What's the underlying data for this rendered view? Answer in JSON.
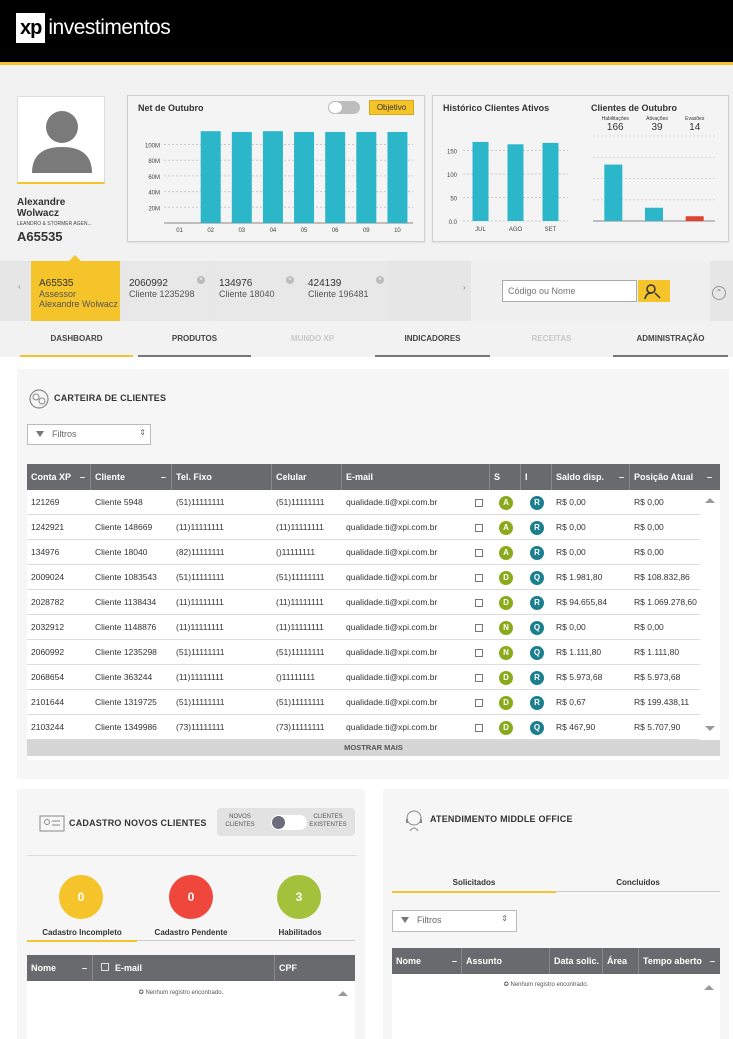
{
  "app": {
    "logo_xp": "xp",
    "logo_name": "investimentos"
  },
  "profile": {
    "name_line1": "Alexandre",
    "name_line2": "Wolwacz",
    "company": "LEANDRO & STORMER AGEN...",
    "code": "A65535"
  },
  "net_chart": {
    "title": "Net de Outubro",
    "objective_label": "Objetivo"
  },
  "history": {
    "title": "Histórico Clientes Ativos"
  },
  "clients_oct": {
    "title": "Clientes de Outubro",
    "stats": [
      {
        "label": "Habilitações",
        "value": "166"
      },
      {
        "label": "Ativações",
        "value": "39"
      },
      {
        "label": "Evasões",
        "value": "14"
      }
    ]
  },
  "chart_data": [
    {
      "type": "bar",
      "title": "Net de Outubro",
      "categories": [
        "01",
        "02",
        "03",
        "04",
        "05",
        "06",
        "09",
        "10"
      ],
      "values": [
        null,
        117,
        116,
        117,
        116,
        116,
        116,
        116
      ],
      "ylim": [
        0,
        130
      ],
      "yticks": [
        "20M",
        "40M",
        "60M",
        "80M",
        "100M"
      ],
      "color": "#2cb6c9"
    },
    {
      "type": "bar",
      "title": "Histórico Clientes Ativos",
      "categories": [
        "JUL",
        "AGO",
        "SET"
      ],
      "values": [
        168,
        163,
        166
      ],
      "ylim": [
        0,
        170
      ],
      "yticks": [
        "0.0",
        "50",
        "100",
        "150"
      ],
      "color": "#2cb6c9"
    },
    {
      "type": "bar",
      "title": "Clientes de Outubro",
      "categories": [
        "Habilitações",
        "Ativações",
        "Evasões"
      ],
      "values": [
        166,
        39,
        14
      ],
      "ylim": [
        0,
        250
      ],
      "colors": [
        "#2cb6c9",
        "#2cb6c9",
        "#e0442f"
      ]
    }
  ],
  "client_tabs": [
    {
      "code": "A65535",
      "line1": "Assessor",
      "line2": "Alexandre Wolwacz"
    },
    {
      "code": "2060992",
      "line1": "Cliente 1235298",
      "line2": ""
    },
    {
      "code": "134976",
      "line1": "Cliente 18040",
      "line2": ""
    },
    {
      "code": "424139",
      "line1": "Cliente 196481",
      "line2": ""
    }
  ],
  "search": {
    "placeholder": "Código ou Nome"
  },
  "nav": [
    "DASHBOARD",
    "PRODUTOS",
    "MUNDO XP",
    "INDICADORES",
    "RECEITAS",
    "ADMINISTRAÇÃO"
  ],
  "carteira": {
    "title": "CARTEIRA DE CLIENTES",
    "filter": "Filtros",
    "more": "MOSTRAR MAIS",
    "headers": [
      "Conta XP",
      "Cliente",
      "Tel. Fixo",
      "Celular",
      "E-mail",
      "S",
      "I",
      "Saldo disp.",
      "Posição Atual"
    ],
    "rows": [
      [
        "121269",
        "Cliente 5948",
        "(51)11111111",
        "(51)11111111",
        "qualidade.ti@xpi.com.br",
        "A",
        "R",
        "R$ 0,00",
        "R$ 0,00"
      ],
      [
        "1242921",
        "Cliente 148669",
        "(11)11111111",
        "(11)11111111",
        "qualidade.ti@xpi.com.br",
        "A",
        "R",
        "R$ 0,00",
        "R$ 0,00"
      ],
      [
        "134976",
        "Cliente 18040",
        "(82)11111111",
        "()11111111",
        "qualidade.ti@xpi.com.br",
        "A",
        "R",
        "R$ 0,00",
        "R$ 0,00"
      ],
      [
        "2009024",
        "Cliente 1083543",
        "(51)11111111",
        "(51)11111111",
        "qualidade.ti@xpi.com.br",
        "D",
        "Q",
        "R$ 1.981,80",
        "R$ 108.832,86"
      ],
      [
        "2028782",
        "Cliente 1138434",
        "(11)11111111",
        "(11)11111111",
        "qualidade.ti@xpi.com.br",
        "D",
        "R",
        "R$ 94.655,84",
        "R$ 1.069.278,60"
      ],
      [
        "2032912",
        "Cliente 1148876",
        "(11)11111111",
        "(11)11111111",
        "qualidade.ti@xpi.com.br",
        "N",
        "Q",
        "R$ 0,00",
        "R$ 0,00"
      ],
      [
        "2060992",
        "Cliente 1235298",
        "(51)11111111",
        "(51)11111111",
        "qualidade.ti@xpi.com.br",
        "N",
        "Q",
        "R$ 1.111,80",
        "R$ 1.111,80"
      ],
      [
        "2068654",
        "Cliente 363244",
        "(11)11111111",
        "()11111111",
        "qualidade.ti@xpi.com.br",
        "D",
        "R",
        "R$ 5.973,68",
        "R$ 5.973,68"
      ],
      [
        "2101644",
        "Cliente 1319725",
        "(51)11111111",
        "(51)11111111",
        "qualidade.ti@xpi.com.br",
        "D",
        "R",
        "R$ 0,67",
        "R$ 199.438,11"
      ],
      [
        "2103244",
        "Cliente 1349986",
        "(73)11111111",
        "(73)11111111",
        "qualidade.ti@xpi.com.br",
        "D",
        "Q",
        "R$ 467,90",
        "R$ 5.707,90"
      ]
    ]
  },
  "cadastro": {
    "title": "CADASTRO NOVOS CLIENTES",
    "toggle_left": "NOVOS CLIENTES",
    "toggle_right": "CLIENTES EXISTENTES",
    "circles": [
      {
        "value": "0",
        "label": "Cadastro Incompleto",
        "color": "#f5c32a"
      },
      {
        "value": "0",
        "label": "Cadastro Pendente",
        "color": "#f0473c"
      },
      {
        "value": "3",
        "label": "Habilitados",
        "color": "#a3c13a"
      }
    ],
    "headers": [
      "Nome",
      "E-mail",
      "CPF"
    ],
    "empty": "Nenhum registro encontrado."
  },
  "atendimento": {
    "title": "ATENDIMENTO MIDDLE OFFICE",
    "tabs": [
      "Solicitados",
      "Concluídos"
    ],
    "filter": "Filtros",
    "headers": [
      "Nome",
      "Assunto",
      "Data solic.",
      "Área",
      "Tempo aberto"
    ],
    "empty": "Nenhum registro encontrado."
  },
  "badge_colors": {
    "A": "#8aaa1c",
    "D": "#8aaa1c",
    "N": "#8aaa1c",
    "R": "#1b7f8e",
    "Q": "#1b7f8e"
  }
}
